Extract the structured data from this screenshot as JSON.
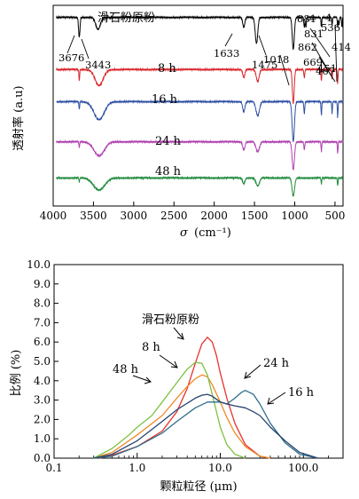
{
  "chart_data": [
    {
      "type": "line",
      "xlabel_symbol": "σ",
      "xlabel_unit": "(cm⁻¹)",
      "ylabel": "透射率 (a.u)",
      "xlim": [
        4000,
        400
      ],
      "x_ticks": [
        "4000",
        "3500",
        "3000",
        "2500",
        "2000",
        "1500",
        "1000",
        "500"
      ],
      "x_tick_values": [
        4000,
        3500,
        3000,
        2500,
        2000,
        1500,
        1000,
        500
      ],
      "series": [
        {
          "name": "滑石粉原粉",
          "color": "#000000",
          "base": 0.06,
          "dips": [
            [
              3676,
              0.1,
              12
            ],
            [
              3443,
              0.06,
              40
            ],
            [
              1633,
              0.05,
              18
            ],
            [
              1475,
              0.13,
              22
            ],
            [
              1018,
              0.16,
              18
            ],
            [
              881,
              0.05,
              8
            ],
            [
              862,
              0.05,
              8
            ],
            [
              669,
              0.05,
              6
            ],
            [
              536,
              0.04,
              6
            ],
            [
              467,
              0.05,
              6
            ],
            [
              451,
              0.04,
              6
            ],
            [
              414,
              0.05,
              6
            ]
          ]
        },
        {
          "name": "8 h",
          "color": "#d9262b",
          "base": 0.32,
          "dips": [
            [
              3676,
              0.06,
              6
            ],
            [
              3430,
              0.08,
              70
            ],
            [
              1633,
              0.04,
              18
            ],
            [
              1460,
              0.06,
              25
            ],
            [
              1018,
              0.17,
              16
            ],
            [
              881,
              0.04,
              8
            ],
            [
              669,
              0.06,
              6
            ],
            [
              536,
              0.05,
              6
            ],
            [
              467,
              0.07,
              6
            ]
          ]
        },
        {
          "name": "16 h",
          "color": "#2e4fa3",
          "base": 0.48,
          "dips": [
            [
              3676,
              0.04,
              6
            ],
            [
              3430,
              0.09,
              90
            ],
            [
              1633,
              0.05,
              20
            ],
            [
              1460,
              0.07,
              30
            ],
            [
              1018,
              0.2,
              20
            ],
            [
              881,
              0.06,
              8
            ],
            [
              669,
              0.07,
              6
            ],
            [
              536,
              0.06,
              6
            ],
            [
              467,
              0.08,
              6
            ]
          ]
        },
        {
          "name": "24 h",
          "color": "#b040b0",
          "base": 0.68,
          "dips": [
            [
              3676,
              0.03,
              6
            ],
            [
              3430,
              0.07,
              90
            ],
            [
              1633,
              0.04,
              20
            ],
            [
              1460,
              0.05,
              30
            ],
            [
              1018,
              0.14,
              20
            ],
            [
              881,
              0.04,
              8
            ],
            [
              669,
              0.05,
              6
            ],
            [
              467,
              0.06,
              6
            ]
          ]
        },
        {
          "name": "48 h",
          "color": "#1f8a3c",
          "base": 0.86,
          "dips": [
            [
              3676,
              0.02,
              6
            ],
            [
              3430,
              0.06,
              100
            ],
            [
              1633,
              0.03,
              20
            ],
            [
              1460,
              0.04,
              30
            ],
            [
              1018,
              0.09,
              22
            ],
            [
              669,
              0.03,
              6
            ],
            [
              467,
              0.04,
              6
            ]
          ]
        }
      ],
      "curve_labels": [
        "滑石粉原粉",
        "8 h",
        "16 h",
        "24 h",
        "48 h"
      ],
      "annotations": [
        "3676",
        "3443",
        "1633",
        "1475",
        "1018",
        "881",
        "862",
        "831",
        "669",
        "536",
        "467",
        "451",
        "414",
        "4"
      ]
    },
    {
      "type": "line",
      "xlabel": "颗粒粒径 (μm)",
      "ylabel": "比例 (%)",
      "x_scale": "log",
      "xlim": [
        0.1,
        300
      ],
      "ylim": [
        0,
        10
      ],
      "x_ticks": [
        "0.1",
        "1.0",
        "10.0",
        "100.0"
      ],
      "y_ticks": [
        "0.0",
        "1.0",
        "2.0",
        "3.0",
        "4.0",
        "5.0",
        "6.0",
        "7.0",
        "8.0",
        "9.0",
        "10.0"
      ],
      "series": [
        {
          "name": "滑石粉原粉",
          "color": "#e8332d",
          "x": [
            0.35,
            0.5,
            1,
            2,
            3,
            4,
            5,
            6,
            7,
            8,
            9,
            10,
            12,
            15,
            20,
            30,
            40
          ],
          "y": [
            0,
            0.15,
            0.6,
            1.4,
            2.4,
            3.6,
            4.9,
            5.9,
            6.25,
            6.0,
            5.3,
            4.4,
            3.1,
            1.8,
            0.7,
            0.1,
            0
          ]
        },
        {
          "name": "8 h",
          "color": "#f08a2a",
          "x": [
            0.3,
            0.5,
            1,
            2,
            3,
            4,
            5,
            6,
            7,
            8,
            10,
            12,
            15,
            20,
            30,
            40
          ],
          "y": [
            0,
            0.3,
            1.2,
            2.2,
            3.1,
            3.7,
            4.1,
            4.3,
            4.2,
            3.8,
            2.9,
            2.1,
            1.3,
            0.6,
            0.1,
            0
          ]
        },
        {
          "name": "48 h",
          "color": "#7dc142",
          "x": [
            0.3,
            0.5,
            0.8,
            1,
            1.5,
            2,
            3,
            4,
            5,
            6,
            7,
            8,
            10,
            12,
            15,
            20
          ],
          "y": [
            0,
            0.5,
            1.2,
            1.6,
            2.2,
            2.9,
            3.9,
            4.6,
            4.95,
            4.9,
            4.3,
            3.3,
            1.6,
            0.7,
            0.2,
            0
          ]
        },
        {
          "name": "24 h",
          "color": "#2f6d8c",
          "x": [
            0.3,
            0.5,
            1,
            2,
            3,
            5,
            7,
            10,
            12,
            15,
            18,
            20,
            25,
            30,
            40,
            60,
            90,
            150
          ],
          "y": [
            0,
            0.1,
            0.6,
            1.3,
            1.9,
            2.6,
            2.9,
            2.9,
            2.8,
            3.1,
            3.4,
            3.5,
            3.3,
            2.8,
            1.8,
            0.8,
            0.2,
            0
          ]
        },
        {
          "name": "16 h",
          "color": "#26436e",
          "x": [
            0.3,
            0.5,
            1,
            2,
            3,
            5,
            6,
            7,
            8,
            10,
            12,
            15,
            20,
            25,
            30,
            40,
            60,
            90,
            150
          ],
          "y": [
            0,
            0.2,
            0.9,
            1.9,
            2.5,
            3.1,
            3.25,
            3.3,
            3.2,
            2.9,
            2.8,
            2.7,
            2.6,
            2.4,
            2.2,
            1.6,
            0.9,
            0.3,
            0
          ]
        }
      ],
      "curve_labels": [
        "滑石粉原粉",
        "8 h",
        "48 h",
        "24 h",
        "16 h"
      ]
    }
  ]
}
